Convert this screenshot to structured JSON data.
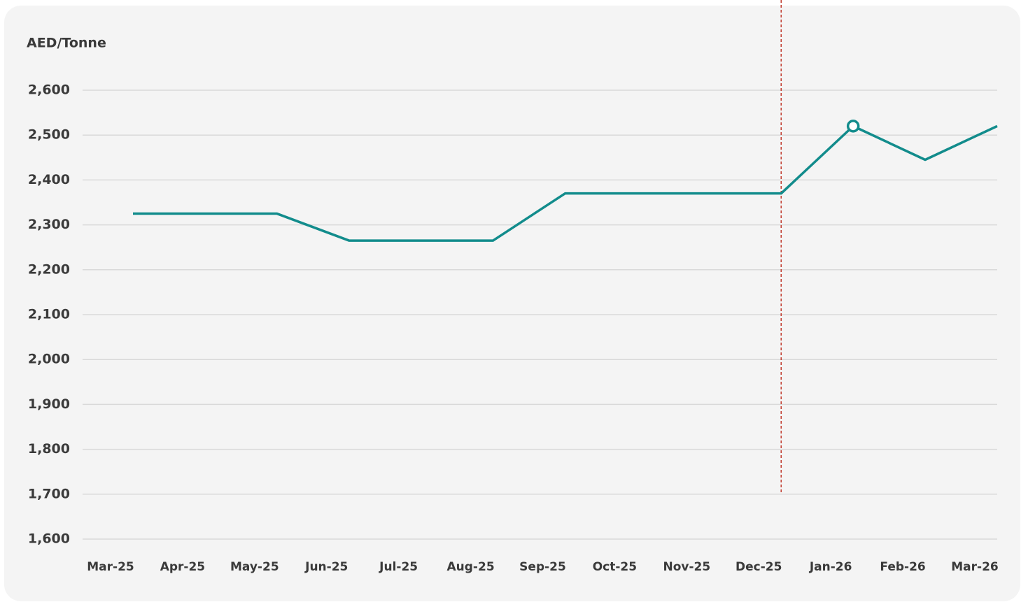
{
  "chart_data": {
    "type": "line",
    "y_axis_label": "AED/Tonne",
    "categories": [
      "Mar-25",
      "Apr-25",
      "May-25",
      "Jun-25",
      "Jul-25",
      "Aug-25",
      "Sep-25",
      "Oct-25",
      "Nov-25",
      "Dec-25",
      "Jan-26",
      "Feb-26",
      "Mar-26"
    ],
    "series": [
      {
        "name": "AED/Tonne",
        "color": "#128c8c",
        "values": [
          2325,
          2325,
          2325,
          2265,
          2265,
          2265,
          2370,
          2370,
          2370,
          2370,
          2520,
          2445,
          2520
        ]
      }
    ],
    "ylim": [
      1600,
      2600
    ],
    "yticks": [
      {
        "value": 1600,
        "label": "1,600"
      },
      {
        "value": 1700,
        "label": "1,700"
      },
      {
        "value": 1800,
        "label": "1,800"
      },
      {
        "value": 1900,
        "label": "1,900"
      },
      {
        "value": 2000,
        "label": "2,000"
      },
      {
        "value": 2100,
        "label": "2,100"
      },
      {
        "value": 2200,
        "label": "2,200"
      },
      {
        "value": 2300,
        "label": "2,300"
      },
      {
        "value": 2400,
        "label": "2,400"
      },
      {
        "value": 2500,
        "label": "2,500"
      },
      {
        "value": 2600,
        "label": "2,600"
      }
    ],
    "grid": true,
    "highlight_point": "Jan-26",
    "reference_line": {
      "x": "Dec-25",
      "ymin": 1700,
      "color": "#c0392b"
    }
  }
}
